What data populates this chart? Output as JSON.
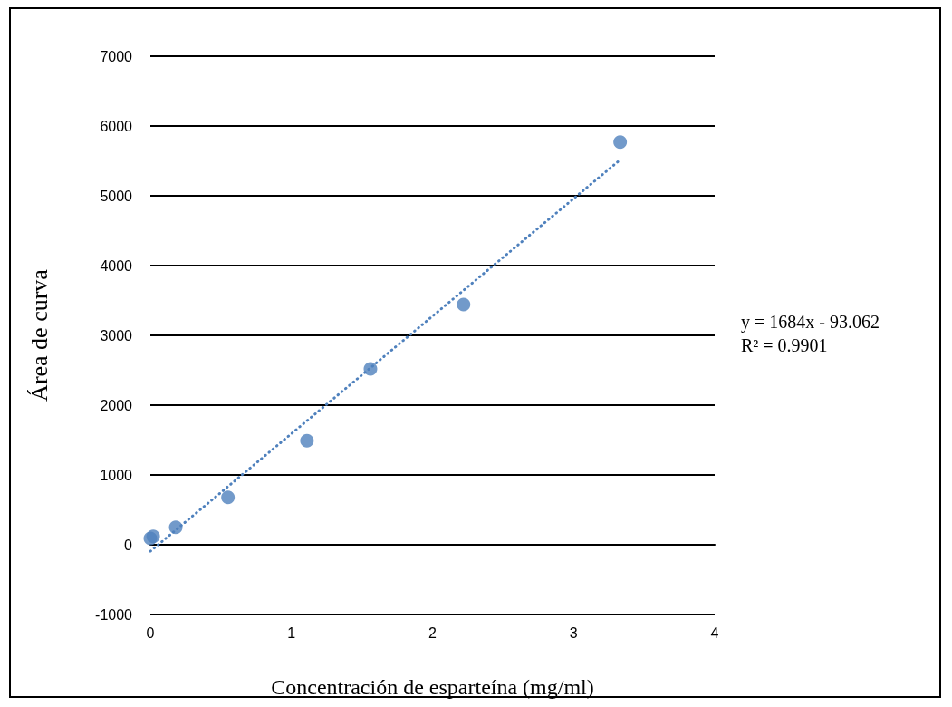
{
  "chart_data": {
    "type": "scatter",
    "xlabel": "Concentración de esparteína (mg/ml)",
    "ylabel": "Área de curva",
    "annotations": [
      "y = 1684x - 93.062\nR² = 0.9901"
    ],
    "series": [
      {
        "color": "#4f81bd",
        "x": [
          0,
          0.02,
          0.18,
          0.55,
          1.11,
          1.56,
          2.22,
          3.33
        ],
        "values": [
          90,
          120,
          250,
          680,
          1490,
          2520,
          3440,
          5770
        ],
        "marker": "circle"
      },
      {
        "type": "line",
        "color": "#4f81bd",
        "x": [
          0,
          3.33
        ],
        "values": [
          -93,
          5515
        ],
        "marker": "none",
        "line_style": "dotted"
      }
    ],
    "xlim": [
      0,
      4
    ],
    "xticks": [
      0,
      1,
      2,
      3,
      4
    ],
    "ylim": [
      -1000,
      7000
    ],
    "yticks": [
      -1000,
      0,
      1000,
      2000,
      3000,
      4000,
      5000,
      6000,
      7000
    ],
    "grid": "y"
  }
}
